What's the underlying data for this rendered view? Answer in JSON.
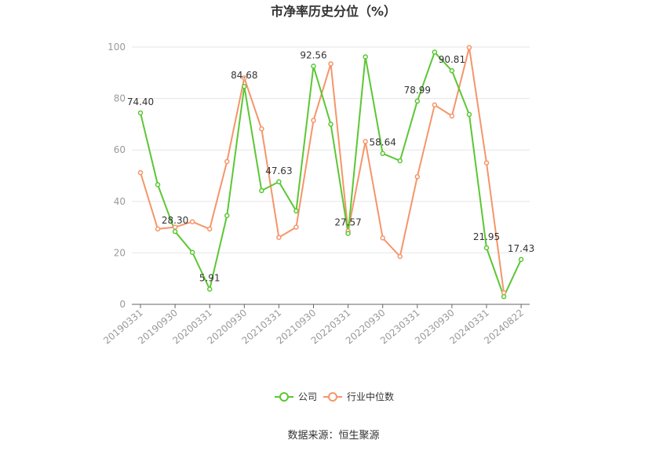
{
  "chart_data": {
    "type": "line",
    "title": "市净率历史分位（%）",
    "ylim": [
      0,
      100
    ],
    "yticks": [
      0,
      20,
      40,
      60,
      80,
      100
    ],
    "grid": true,
    "legend_placement": "bottom",
    "x": [
      "20190331",
      "20190630",
      "20190930",
      "20191231",
      "20200331",
      "20200630",
      "20200930",
      "20201231",
      "20210331",
      "20210630",
      "20210930",
      "20211231",
      "20220331",
      "20220630",
      "20220930",
      "20221231",
      "20230331",
      "20230630",
      "20230930",
      "20231231",
      "20240331",
      "20240630",
      "20240822"
    ],
    "x_tick_labels": [
      "20190331",
      "20190930",
      "20200331",
      "20200930",
      "20210331",
      "20210930",
      "20220331",
      "20220930",
      "20230331",
      "20230930",
      "20240331",
      "20240822"
    ],
    "series": [
      {
        "name": "公司",
        "color": "#5bc734",
        "values": [
          74.4,
          46.5,
          28.3,
          20.2,
          5.91,
          34.5,
          84.68,
          44.2,
          47.63,
          36.3,
          92.56,
          70.0,
          27.57,
          96.2,
          58.64,
          55.8,
          78.99,
          98.0,
          90.81,
          73.8,
          21.95,
          3.0,
          17.43
        ],
        "labels": {
          "0": "74.40",
          "2": "28.30",
          "4": "5.91",
          "6": "84.68",
          "8": "47.63",
          "10": "92.56",
          "12": "27.57",
          "14": "58.64",
          "16": "78.99",
          "18": "90.81",
          "20": "21.95",
          "22": "17.43"
        }
      },
      {
        "name": "行业中位数",
        "color": "#f5956a",
        "values": [
          51.2,
          29.3,
          30.0,
          32.1,
          29.3,
          55.5,
          88.0,
          68.2,
          26.0,
          30.0,
          71.5,
          93.5,
          28.5,
          63.3,
          25.8,
          18.6,
          49.6,
          77.5,
          73.2,
          99.8,
          55.0,
          4.5,
          null
        ]
      }
    ]
  },
  "footer": {
    "source": "数据来源：恒生聚源"
  }
}
